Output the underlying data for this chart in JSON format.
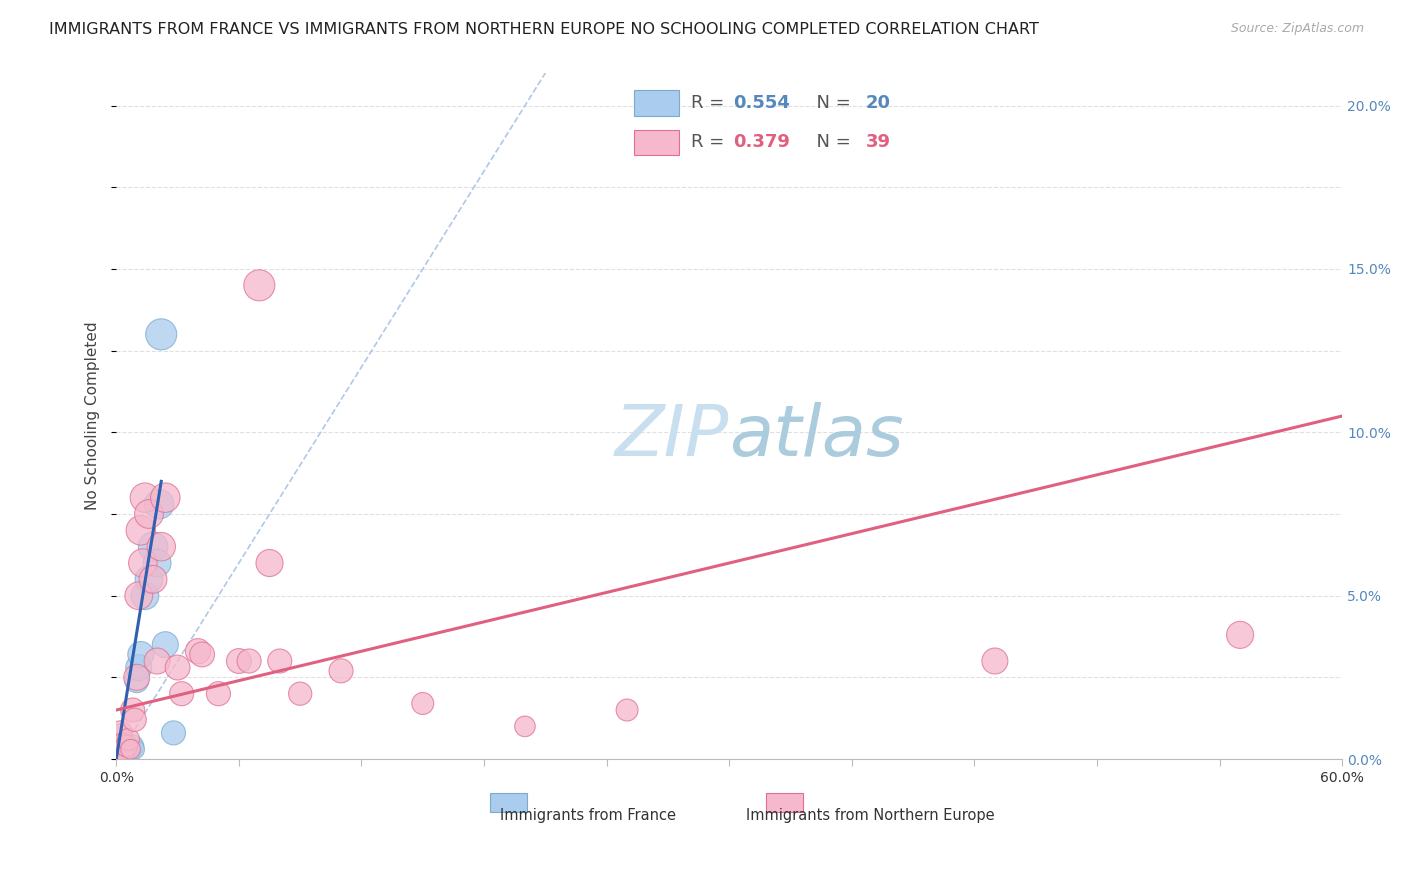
{
  "title": "IMMIGRANTS FROM FRANCE VS IMMIGRANTS FROM NORTHERN EUROPE NO SCHOOLING COMPLETED CORRELATION CHART",
  "source": "Source: ZipAtlas.com",
  "ylabel": "No Schooling Completed",
  "ylabel_right_ticks": [
    "0.0%",
    "5.0%",
    "10.0%",
    "15.0%",
    "20.0%"
  ],
  "xlim": [
    0.0,
    0.6
  ],
  "ylim": [
    0.0,
    0.21
  ],
  "watermark_zip": "ZIP",
  "watermark_atlas": "atlas",
  "legend": {
    "france_R": 0.554,
    "france_N": 20,
    "ne_R": 0.379,
    "ne_N": 39
  },
  "france_scatter": {
    "x": [
      0.001,
      0.002,
      0.003,
      0.004,
      0.005,
      0.006,
      0.007,
      0.008,
      0.009,
      0.01,
      0.011,
      0.012,
      0.014,
      0.016,
      0.018,
      0.02,
      0.021,
      0.022,
      0.024,
      0.028
    ],
    "y": [
      0.004,
      0.002,
      0.001,
      0.003,
      0.002,
      0.003,
      0.002,
      0.004,
      0.003,
      0.024,
      0.028,
      0.032,
      0.05,
      0.055,
      0.065,
      0.06,
      0.078,
      0.13,
      0.035,
      0.008
    ],
    "size": [
      300,
      250,
      200,
      200,
      250,
      250,
      200,
      250,
      200,
      300,
      350,
      350,
      400,
      400,
      450,
      400,
      450,
      500,
      350,
      300
    ]
  },
  "northern_europe_scatter": {
    "x": [
      0.001,
      0.001,
      0.002,
      0.002,
      0.003,
      0.003,
      0.004,
      0.005,
      0.006,
      0.007,
      0.008,
      0.009,
      0.01,
      0.011,
      0.012,
      0.013,
      0.014,
      0.016,
      0.018,
      0.02,
      0.022,
      0.024,
      0.03,
      0.032,
      0.04,
      0.042,
      0.05,
      0.06,
      0.065,
      0.07,
      0.075,
      0.08,
      0.09,
      0.11,
      0.15,
      0.2,
      0.25,
      0.43,
      0.55
    ],
    "y": [
      0.004,
      0.007,
      0.003,
      0.008,
      0.003,
      0.005,
      0.002,
      0.004,
      0.006,
      0.003,
      0.015,
      0.012,
      0.025,
      0.05,
      0.07,
      0.06,
      0.08,
      0.075,
      0.055,
      0.03,
      0.065,
      0.08,
      0.028,
      0.02,
      0.033,
      0.032,
      0.02,
      0.03,
      0.03,
      0.145,
      0.06,
      0.03,
      0.02,
      0.027,
      0.017,
      0.01,
      0.015,
      0.03,
      0.038
    ],
    "size": [
      350,
      300,
      250,
      300,
      250,
      200,
      200,
      250,
      250,
      200,
      300,
      280,
      350,
      400,
      450,
      420,
      450,
      430,
      400,
      350,
      420,
      450,
      320,
      300,
      330,
      320,
      300,
      320,
      300,
      500,
      380,
      300,
      280,
      300,
      250,
      220,
      250,
      350,
      380
    ]
  },
  "france_line": {
    "x": [
      0.0,
      0.022
    ],
    "y": [
      0.0,
      0.085
    ]
  },
  "northern_europe_line": {
    "x": [
      0.0,
      0.6
    ],
    "y": [
      0.015,
      0.105
    ]
  },
  "diagonal_line": {
    "x": [
      0.0,
      0.21
    ],
    "y": [
      0.0,
      0.21
    ]
  },
  "background_color": "#ffffff",
  "grid_color": "#e0e0e0",
  "france_color": "#aaccee",
  "france_edge_color": "#7aabcc",
  "northern_europe_color": "#f5b8cc",
  "northern_europe_edge_color": "#e07090",
  "france_line_color": "#3060b0",
  "northern_europe_line_color": "#e06080",
  "diagonal_color": "#b0c8e8",
  "title_fontsize": 11.5,
  "tick_fontsize": 10,
  "legend_fontsize": 13,
  "watermark_fontsize_zip": 52,
  "watermark_fontsize_atlas": 52,
  "watermark_color_zip": "#c8dff0",
  "watermark_color_atlas": "#aaccdd",
  "right_tick_color": "#5588bb",
  "ne_legend_color": "#e06080"
}
